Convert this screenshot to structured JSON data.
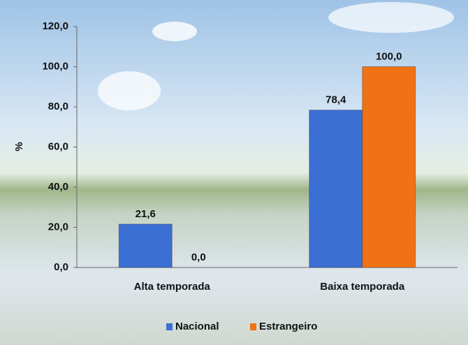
{
  "chart_data": {
    "type": "bar",
    "ylabel": "%",
    "categories": [
      "Alta temporada",
      "Baixa temporada"
    ],
    "series": [
      {
        "name": "Nacional",
        "color": "#3b6fd4",
        "values": [
          21.6,
          78.4
        ],
        "value_labels": [
          "21,6",
          "78,4"
        ]
      },
      {
        "name": "Estrangeiro",
        "color": "#f07214",
        "values": [
          0.0,
          100.0
        ],
        "value_labels": [
          "0,0",
          "100,0"
        ]
      }
    ],
    "ylim": [
      0,
      120
    ],
    "yticks": [
      {
        "value": 0,
        "label": "0,0"
      },
      {
        "value": 20,
        "label": "20,0"
      },
      {
        "value": 40,
        "label": "40,0"
      },
      {
        "value": 60,
        "label": "60,0"
      },
      {
        "value": 80,
        "label": "80,0"
      },
      {
        "value": 100,
        "label": "100,0"
      },
      {
        "value": 120,
        "label": "120,0"
      }
    ],
    "legend": "bottom"
  }
}
